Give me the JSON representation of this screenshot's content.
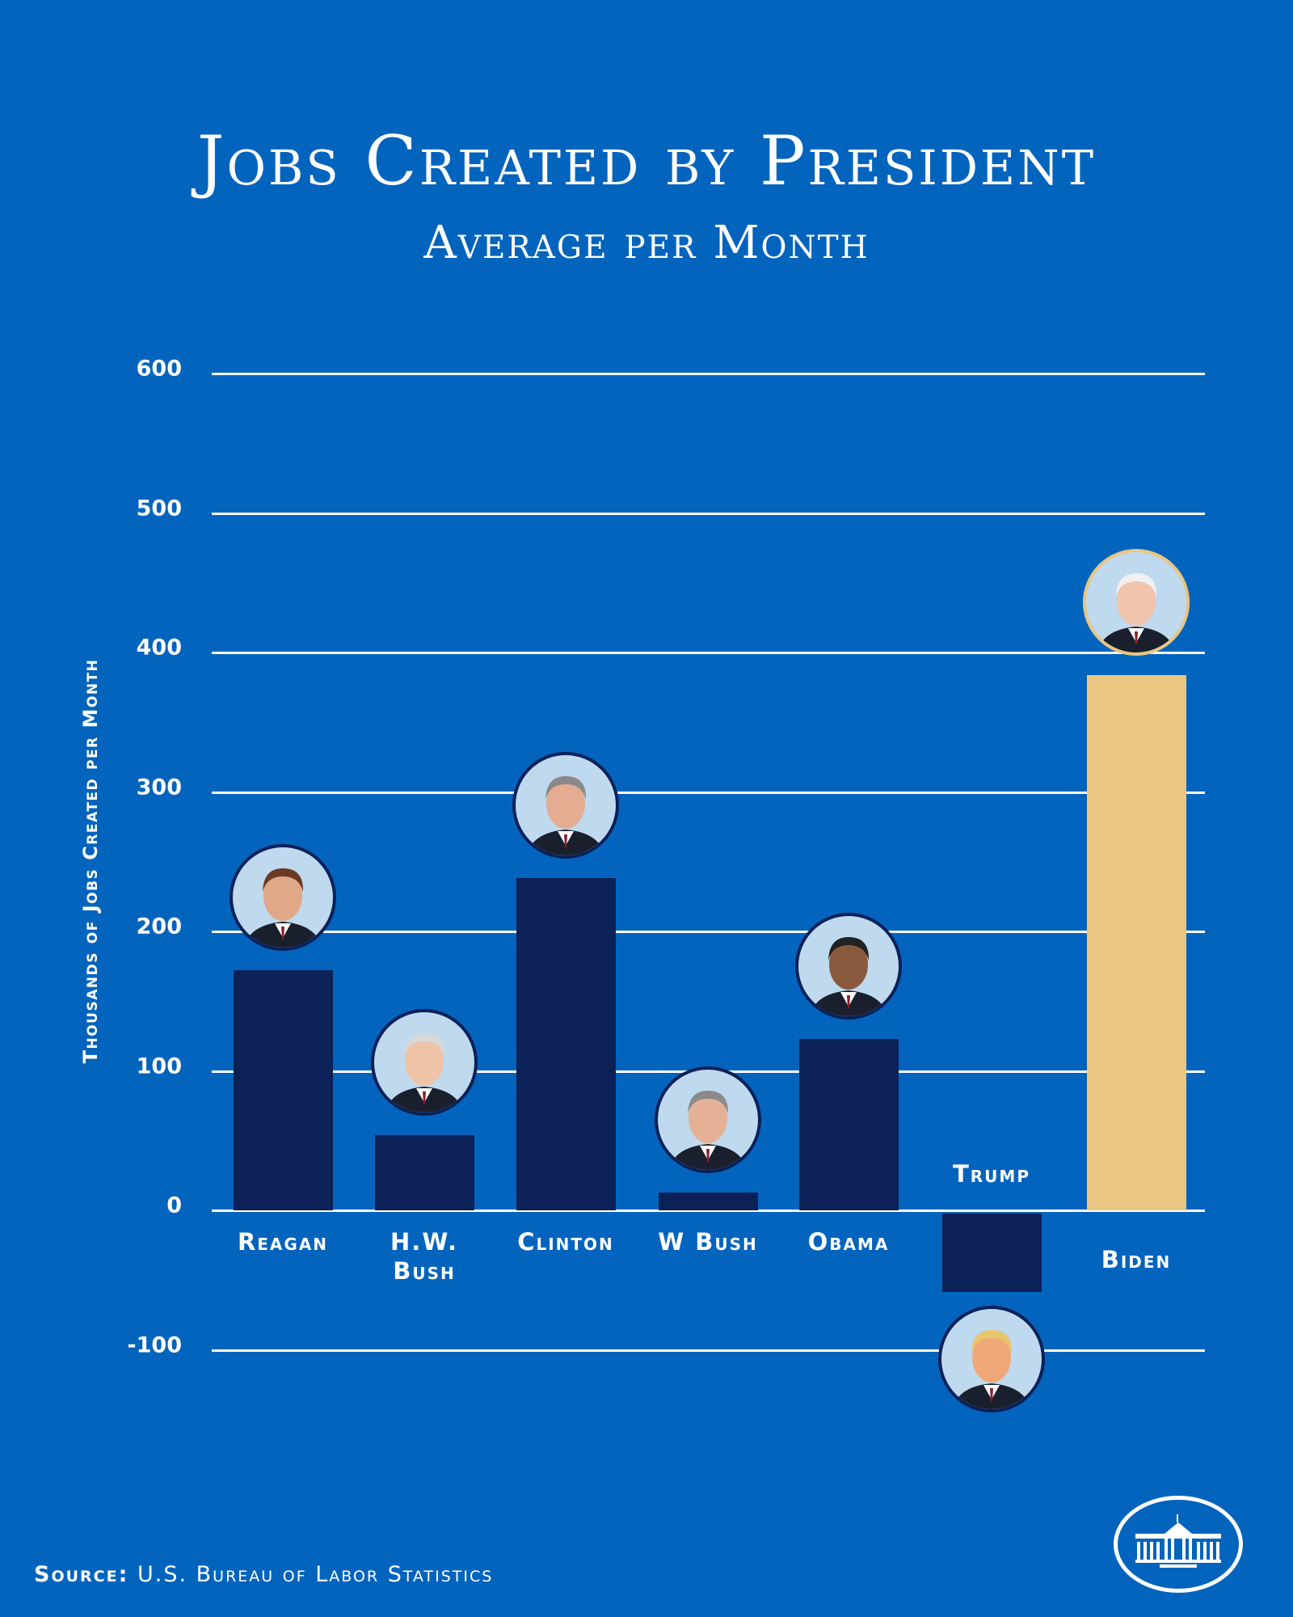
{
  "chart_data": {
    "type": "bar",
    "title": "Jobs Created by President",
    "subtitle": "Average per Month",
    "ylabel": "Thousands of Jobs Created per Month",
    "xlabel": "",
    "ylim": [
      -100,
      600
    ],
    "yticks": [
      600,
      500,
      400,
      300,
      200,
      100,
      0,
      -100
    ],
    "grid": true,
    "categories": [
      "Reagan",
      "H.W. Bush",
      "Clinton",
      "W Bush",
      "Obama",
      "Trump",
      "Biden"
    ],
    "values": [
      172,
      54,
      238,
      13,
      123,
      -56,
      384
    ],
    "colors": [
      "#0B2158",
      "#0B2158",
      "#0B2158",
      "#0B2158",
      "#0B2158",
      "#0B2158",
      "#EBC683"
    ],
    "portraits": [
      "reagan",
      "hw-bush",
      "clinton",
      "w-bush",
      "obama",
      "trump",
      "biden"
    ]
  },
  "source": {
    "label": "Source:",
    "text": "U.S. Bureau of Labor Statistics"
  },
  "background_color": "#0364BE"
}
